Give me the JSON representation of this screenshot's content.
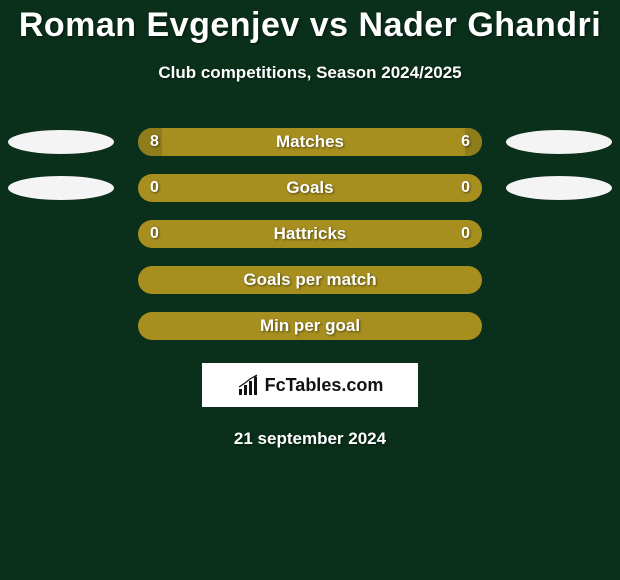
{
  "title": "Roman Evgenjev vs Nader Ghandri",
  "subtitle": "Club competitions, Season 2024/2025",
  "date": "21 september 2024",
  "brand": {
    "text": "FcTables.com"
  },
  "colors": {
    "background": "#0a2f1a",
    "bar": "#a68f1f",
    "bar_shade": "#8f7c1a",
    "ellipse": "#f4f4f4",
    "text": "#ffffff",
    "brand_bg": "#ffffff",
    "brand_text": "#111111"
  },
  "rows": [
    {
      "label": "Matches",
      "left": "8",
      "right": "6",
      "left_ellipse": true,
      "right_ellipse": true,
      "left_fill_pct": 7,
      "right_fill_pct": 5
    },
    {
      "label": "Goals",
      "left": "0",
      "right": "0",
      "left_ellipse": true,
      "right_ellipse": true,
      "left_fill_pct": 0,
      "right_fill_pct": 0
    },
    {
      "label": "Hattricks",
      "left": "0",
      "right": "0",
      "left_ellipse": false,
      "right_ellipse": false,
      "left_fill_pct": 0,
      "right_fill_pct": 0
    },
    {
      "label": "Goals per match",
      "left": "",
      "right": "",
      "left_ellipse": false,
      "right_ellipse": false,
      "left_fill_pct": 0,
      "right_fill_pct": 0
    },
    {
      "label": "Min per goal",
      "left": "",
      "right": "",
      "left_ellipse": false,
      "right_ellipse": false,
      "left_fill_pct": 0,
      "right_fill_pct": 0
    }
  ]
}
